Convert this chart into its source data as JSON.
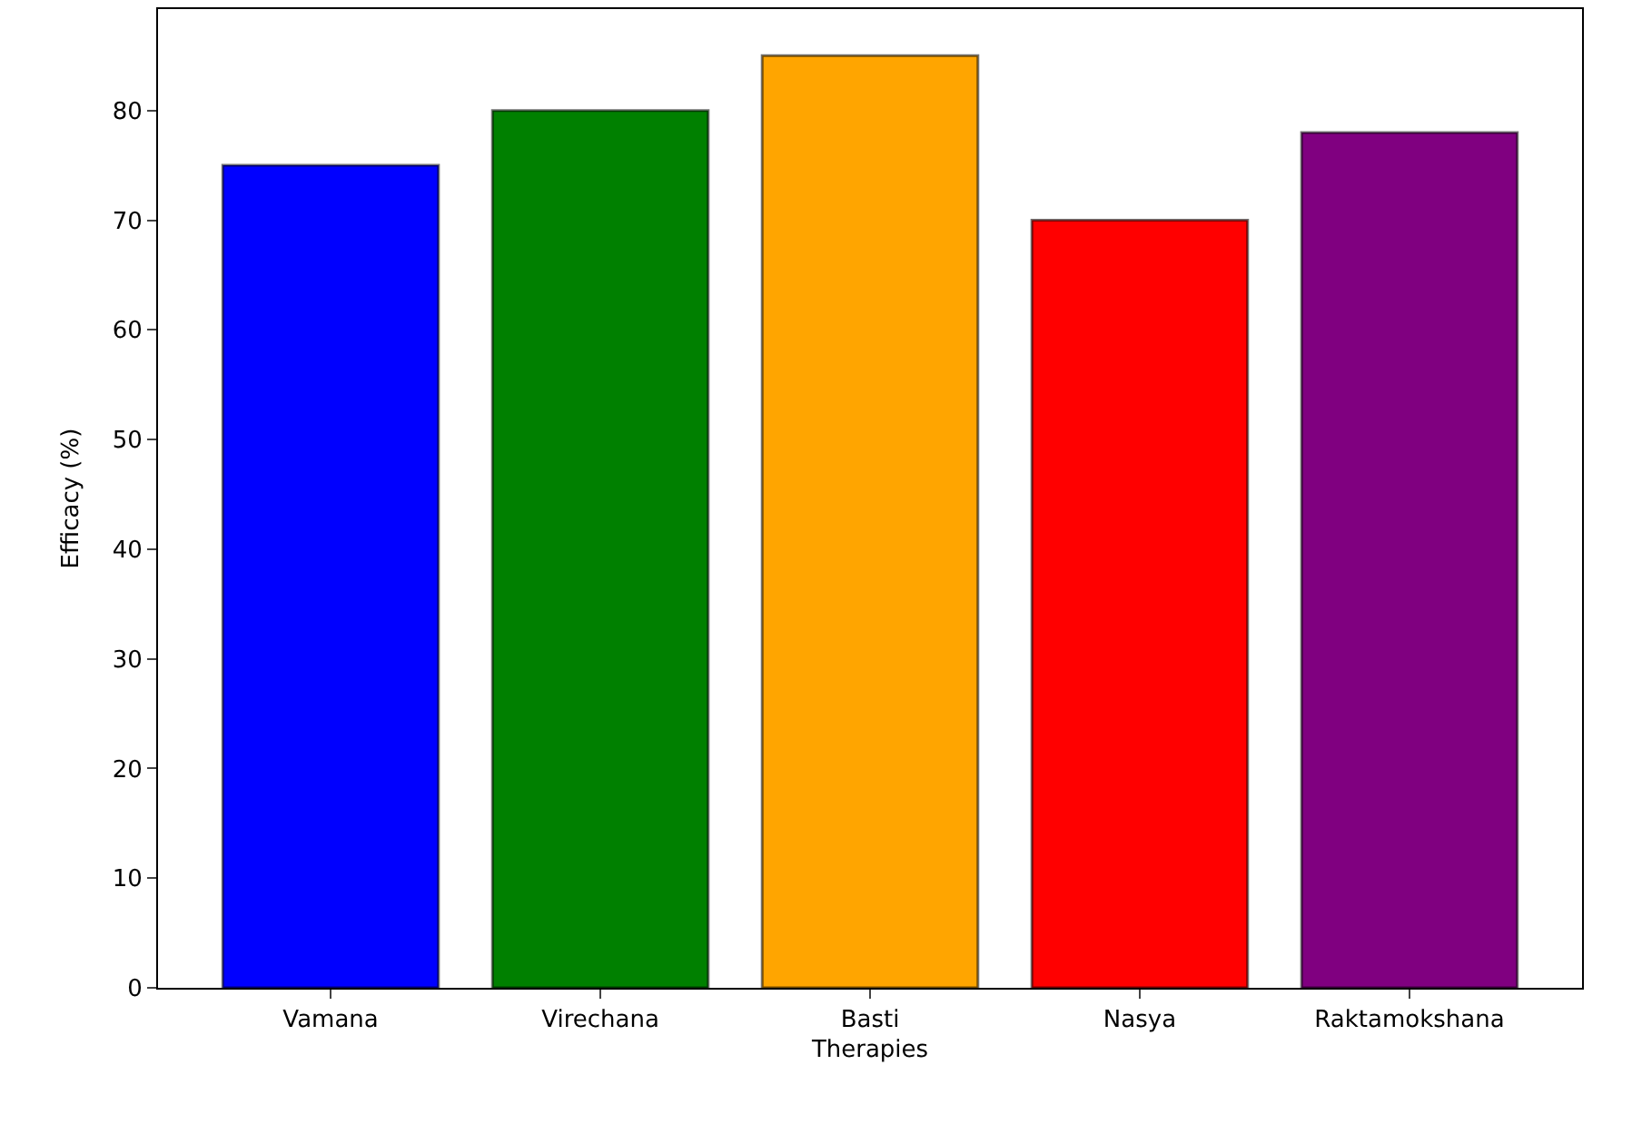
{
  "chart_data": {
    "type": "bar",
    "xlabel": "Therapies",
    "ylabel": "Efficacy (%)",
    "categories": [
      "Vamana",
      "Virechana",
      "Basti",
      "Nasya",
      "Raktamokshana"
    ],
    "values": [
      75,
      80,
      85,
      70,
      78
    ],
    "colors": [
      "#0000ff",
      "#008000",
      "#ffa500",
      "#ff0000",
      "#800080"
    ],
    "ylim": [
      0,
      89.25
    ],
    "yticks": [
      0,
      10,
      20,
      30,
      40,
      50,
      60,
      70,
      80
    ]
  }
}
